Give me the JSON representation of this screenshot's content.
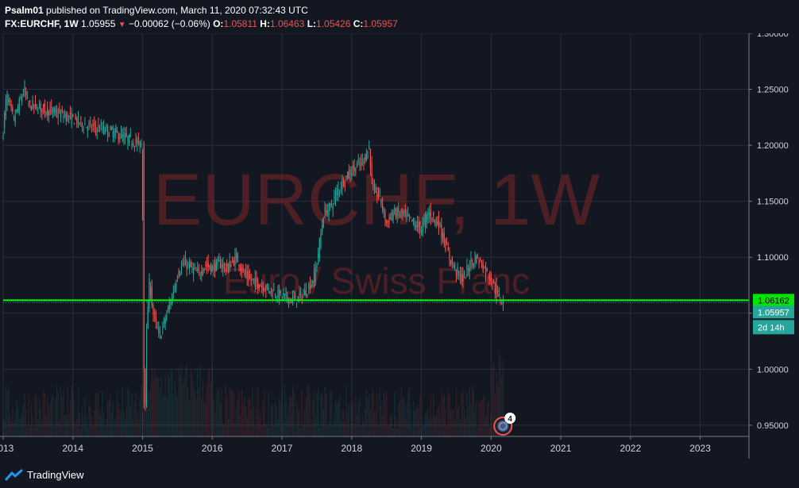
{
  "header": {
    "publisher": "Psalm01",
    "published_text": " published on TradingView.com, March 11, 2020 07:32:43 UTC",
    "symbol": "FX:EURCHF, 1W",
    "last": "1.05955",
    "change_arrow": "▼",
    "change": "−0.00062 (−0.06%)",
    "o_label": "O:",
    "o_value": "1.05811",
    "h_label": "H:",
    "h_value": "1.06463",
    "l_label": "L:",
    "l_value": "1.05426",
    "c_label": "C:",
    "c_value": "1.05957"
  },
  "watermark": {
    "symbol": "EURCHF, 1W",
    "description": "Euro / Swiss Franc"
  },
  "footer": {
    "brand": "TradingView"
  },
  "colors": {
    "background": "#131722",
    "up": "#26a69a",
    "down": "#ef5350",
    "horizontal_line": "#00ff00",
    "grid": "#2a2e39"
  },
  "chart_data": {
    "type": "candlestick",
    "interval": "1W",
    "symbol": "FX:EURCHF",
    "ylim": [
      0.94,
      1.3
    ],
    "xlim": [
      2013.0,
      2023.7
    ],
    "y_ticks": [
      "1.30000",
      "1.25000",
      "1.20000",
      "1.15000",
      "1.10000",
      "1.05000",
      "1.00000",
      "0.95000"
    ],
    "x_ticks": [
      "2013",
      "2014",
      "2015",
      "2016",
      "2017",
      "2018",
      "2019",
      "2020",
      "2021",
      "2022",
      "2023"
    ],
    "price_series": {
      "x": [
        2013.0,
        2013.05,
        2013.15,
        2013.3,
        2013.36,
        2013.5,
        2013.7,
        2013.9,
        2014.05,
        2014.2,
        2014.4,
        2014.55,
        2014.7,
        2014.85,
        2014.99,
        2015.02,
        2015.04,
        2015.06,
        2015.1,
        2015.15,
        2015.2,
        2015.25,
        2015.3,
        2015.4,
        2015.5,
        2015.6,
        2015.7,
        2015.8,
        2015.9,
        2016.0,
        2016.1,
        2016.2,
        2016.35,
        2016.45,
        2016.55,
        2016.7,
        2016.85,
        2017.0,
        2017.15,
        2017.25,
        2017.35,
        2017.45,
        2017.5,
        2017.6,
        2017.7,
        2017.8,
        2017.9,
        2018.0,
        2018.15,
        2018.25,
        2018.3,
        2018.4,
        2018.5,
        2018.6,
        2018.75,
        2018.9,
        2019.0,
        2019.1,
        2019.25,
        2019.4,
        2019.5,
        2019.6,
        2019.7,
        2019.8,
        2019.9,
        2020.0,
        2020.1,
        2020.18
      ],
      "close": [
        1.215,
        1.245,
        1.222,
        1.25,
        1.236,
        1.234,
        1.23,
        1.226,
        1.222,
        1.217,
        1.215,
        1.212,
        1.208,
        1.204,
        1.2,
        1.0,
        0.97,
        1.04,
        1.08,
        1.05,
        1.038,
        1.03,
        1.04,
        1.06,
        1.085,
        1.095,
        1.09,
        1.085,
        1.093,
        1.09,
        1.095,
        1.09,
        1.1,
        1.085,
        1.08,
        1.075,
        1.07,
        1.065,
        1.062,
        1.064,
        1.07,
        1.08,
        1.095,
        1.14,
        1.145,
        1.16,
        1.17,
        1.178,
        1.185,
        1.198,
        1.16,
        1.155,
        1.13,
        1.14,
        1.138,
        1.13,
        1.125,
        1.14,
        1.13,
        1.1,
        1.088,
        1.08,
        1.095,
        1.1,
        1.09,
        1.08,
        1.065,
        1.06
      ]
    },
    "horizontal_line": {
      "value": 1.06162,
      "color": "#00ff00"
    },
    "price_labels": [
      {
        "text": "1.06162",
        "value": 1.06162,
        "bg": "#00e600",
        "fg": "#000000"
      },
      {
        "text": "1.05957",
        "value": 1.05957,
        "bg": "#26a69a",
        "fg": "#ffffff"
      }
    ],
    "countdown_label": "2d 14h",
    "event_marker": {
      "x": 2020.17,
      "count": "4"
    },
    "grid": true
  }
}
